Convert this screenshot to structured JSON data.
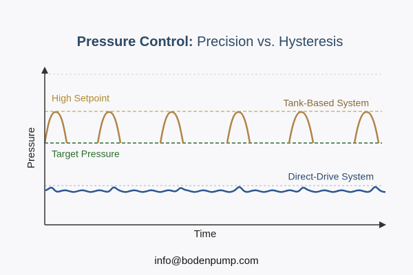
{
  "header": {
    "title_emphasis": "Pressure Control:",
    "title_rest": " Precision vs. Hysteresis"
  },
  "axes": {
    "y_label": "Pressure",
    "x_label": "Time"
  },
  "annotations": {
    "high_setpoint": "High Setpoint",
    "tank_system": "Tank-Based System",
    "target_pressure": "Target Pressure",
    "direct_system": "Direct-Drive System"
  },
  "footer": {
    "contact": "info@bodenpump.com"
  }
}
